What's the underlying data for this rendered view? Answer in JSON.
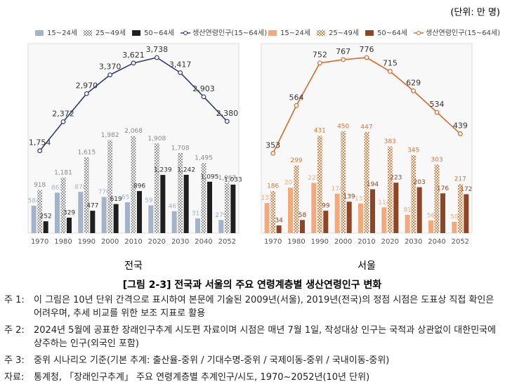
{
  "unit": "(단위: 만 명)",
  "caption": "[그림 2-3] 전국과 서울의 주요 연령계층별 생산연령인구 변화",
  "notes": [
    {
      "label": "주 1:",
      "text": "이 그림은 10년 단위 간격으로 표시하여 본문에 기술된 2009년(서울), 2019년(전국)의 정점 시점은 도표상 직접 확인은 어려우며, 추세 비교를 위한 보조 지표로 활용"
    },
    {
      "label": "주 2:",
      "text": "2024년 5월에 공표한 장래인구추계 시도편 자료이며 시점은 매년 7월 1일, 작성대상 인구는 국적과 상관없이 대한민국에 상주하는 인구(외국인 포함)"
    },
    {
      "label": "주 3:",
      "text": "중위 시나리오 기준(기본 추계: 출산율-중위 / 기대수명-중위 / 국제이동-중위 / 국내이동-중위)"
    }
  ],
  "source": {
    "label": "자료:",
    "text": "통계청, 「장래인구추계」 주요 연령계층별 추계인구/시도, 1970~2052년(10년 단위)"
  },
  "chart_data": [
    {
      "type": "bar",
      "title": "전국",
      "categories": [
        "1970",
        "1980",
        "1990",
        "2000",
        "2010",
        "2020",
        "2030",
        "2040",
        "2052"
      ],
      "series": [
        {
          "name": "15~24세",
          "color": "#a3b3c9",
          "values": [
            584,
            861,
            878,
            770,
            657,
            591,
            467,
            313,
            279
          ]
        },
        {
          "name": "25~49세",
          "color": "#8a8a8a",
          "pattern": "dots",
          "values": [
            918,
            1181,
            1615,
            1982,
            2068,
            1908,
            1708,
            1495,
            1067
          ],
          "value_labels": [
            "918",
            "1,181",
            "1,615",
            "1,982",
            "2,068",
            "1,908",
            "1,708",
            "1,495",
            "1,067"
          ]
        },
        {
          "name": "50~64세",
          "color": "#1f1f1f",
          "values": [
            252,
            329,
            477,
            619,
            896,
            1239,
            1242,
            1095,
            1033
          ],
          "value_labels": [
            "252",
            "329",
            "477",
            "619",
            "896",
            "1,239",
            "1,242",
            "1,095",
            "1,033"
          ]
        },
        {
          "name": "생산연령인구(15~64세)",
          "color": "#2f3d73",
          "type": "line",
          "values": [
            1754,
            2372,
            2970,
            3370,
            3621,
            3738,
            3417,
            2903,
            2380
          ],
          "value_labels": [
            "1,754",
            "2,372",
            "2,970",
            "3,370",
            "3,621",
            "3,738",
            "3,417",
            "2,903",
            "2,380"
          ]
        }
      ]
    },
    {
      "type": "bar",
      "title": "서울",
      "categories": [
        "1970",
        "1980",
        "1990",
        "2000",
        "2010",
        "2020",
        "2030",
        "2040",
        "2052"
      ],
      "series": [
        {
          "name": "15~24세",
          "color": "#f2a97c",
          "values": [
            133,
            201,
            222,
            174,
            131,
            114,
            81,
            56,
            50
          ]
        },
        {
          "name": "25~49세",
          "color": "#e07535",
          "pattern": "dots",
          "values": [
            186,
            299,
            431,
            450,
            447,
            383,
            345,
            303,
            217
          ]
        },
        {
          "name": "50~64세",
          "color": "#8e4526",
          "values": [
            34,
            58,
            99,
            139,
            194,
            223,
            203,
            176,
            172
          ]
        },
        {
          "name": "생산연령인구(15~64세)",
          "color": "#d9692a",
          "type": "line",
          "values": [
            353,
            564,
            752,
            767,
            776,
            715,
            629,
            534,
            439
          ]
        }
      ]
    }
  ]
}
